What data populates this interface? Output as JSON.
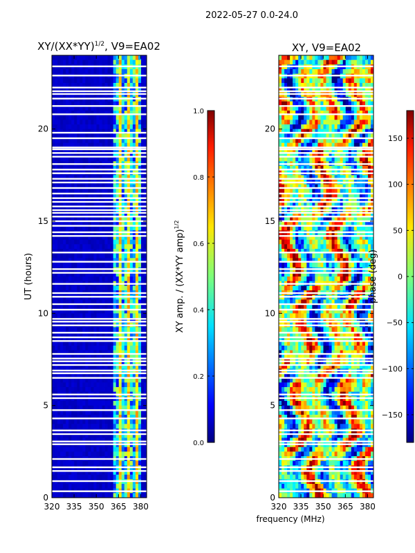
{
  "figure_title": "2022-05-27 0.0-24.0",
  "shared_xlabel": "frequency (MHz)",
  "chart_data": [
    {
      "type": "heatmap",
      "title_main": "XY/(XX*YY)",
      "title_sup": "1/2",
      "title_tail": ", V9=EA02",
      "xlabel": "",
      "ylabel": "UT (hours)",
      "xlim": [
        320,
        384
      ],
      "ylim": [
        0,
        24
      ],
      "xticks": [
        320,
        335,
        350,
        365,
        380
      ],
      "yticks": [
        0,
        5,
        10,
        15,
        20
      ],
      "active_band_mhz": [
        361,
        381
      ],
      "colorbar": {
        "label_main": "XY amp. / (XX*YY amp)",
        "label_sup": "1/2",
        "range": [
          0.0,
          1.0
        ],
        "ticks": [
          "0.0",
          "0.2",
          "0.4",
          "0.6",
          "0.8",
          "1.0"
        ]
      }
    },
    {
      "type": "heatmap",
      "title_main": "XY, V9=EA02",
      "xlabel": "frequency (MHz)",
      "ylabel": "",
      "xlim": [
        320,
        384
      ],
      "ylim": [
        0,
        24
      ],
      "xticks": [
        320,
        335,
        350,
        365,
        380
      ],
      "yticks": [
        0,
        5,
        10,
        15,
        20
      ],
      "colorbar": {
        "label_main": "phase (deg)",
        "range": [
          -180,
          180
        ],
        "ticks": [
          "150",
          "100",
          "50",
          "0",
          "−50",
          "−100",
          "−150"
        ]
      }
    }
  ],
  "gap_hours": [
    0.35,
    0.9,
    1.45,
    1.65,
    2.1,
    2.9,
    3.05,
    3.45,
    3.65,
    4.3,
    4.75,
    5.4,
    5.6,
    6.5,
    6.75,
    6.9,
    7.2,
    7.4,
    7.55,
    7.8,
    8.5,
    8.7,
    8.95,
    9.35,
    9.55,
    9.7,
    10.2,
    10.5,
    10.9,
    11.1,
    11.6,
    12.2,
    12.4,
    12.8,
    13.3,
    14.2,
    14.4,
    14.75,
    15.0,
    15.25,
    15.45,
    15.6,
    15.8,
    16.05,
    16.25,
    16.5,
    16.8,
    17.1,
    17.3,
    17.6,
    17.8,
    18.1,
    18.5,
    18.7,
    18.9,
    19.0,
    19.5,
    19.8,
    20.8,
    21.25,
    21.65,
    21.9,
    22.05,
    22.25,
    22.9,
    23.4
  ]
}
